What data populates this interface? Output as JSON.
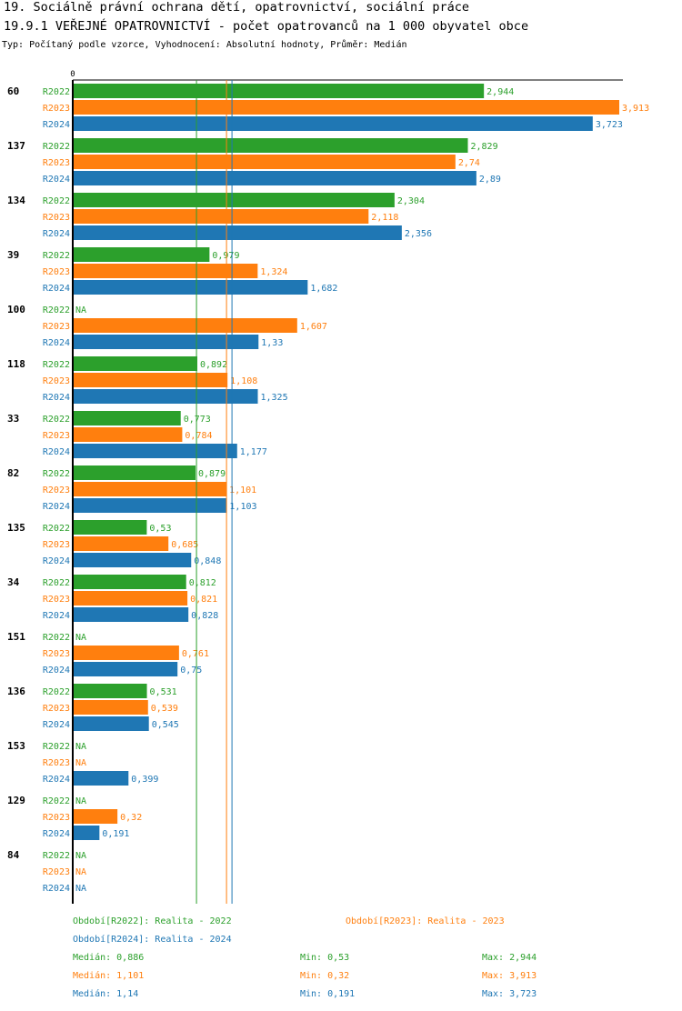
{
  "chart_data": {
    "type": "bar",
    "orientation": "horizontal",
    "title": "19. Sociálně právní ochrana dětí, opatrovnictví, sociální práce",
    "subtitle": "19.9.1 VEŘEJNÉ OPATROVNICTVÍ - počet opatrovanců na 1 000 obyvatel obce",
    "note": "Typ: Počítaný podle vzorce, Vyhodnocení: Absolutní hodnoty, Průměr: Medián",
    "axis_zero_label": "0",
    "xlim": [
      0,
      3.913
    ],
    "categories": [
      "60",
      "137",
      "134",
      "39",
      "100",
      "118",
      "33",
      "82",
      "135",
      "34",
      "151",
      "136",
      "153",
      "129",
      "84"
    ],
    "series": [
      {
        "name": "R2022",
        "color": "#2ca02c",
        "values": [
          2.944,
          2.829,
          2.304,
          0.979,
          null,
          0.892,
          0.773,
          0.879,
          0.53,
          0.812,
          null,
          0.531,
          null,
          null,
          null
        ],
        "labels": [
          "2,944",
          "2,829",
          "2,304",
          "0,979",
          "NA",
          "0,892",
          "0,773",
          "0,879",
          "0,53",
          "0,812",
          "NA",
          "0,531",
          "NA",
          "NA",
          "NA"
        ]
      },
      {
        "name": "R2023",
        "color": "#ff7f0e",
        "values": [
          3.913,
          2.74,
          2.118,
          1.324,
          1.607,
          1.108,
          0.784,
          1.101,
          0.685,
          0.821,
          0.761,
          0.539,
          null,
          0.32,
          null
        ],
        "labels": [
          "3,913",
          "2,74",
          "2,118",
          "1,324",
          "1,607",
          "1,108",
          "0,784",
          "1,101",
          "0,685",
          "0,821",
          "0,761",
          "0,539",
          "NA",
          "0,32",
          "NA"
        ]
      },
      {
        "name": "R2024",
        "color": "#1f77b4",
        "values": [
          3.723,
          2.89,
          2.356,
          1.682,
          1.33,
          1.325,
          1.177,
          1.103,
          0.848,
          0.828,
          0.75,
          0.545,
          0.399,
          0.191,
          null
        ],
        "labels": [
          "3,723",
          "2,89",
          "2,356",
          "1,682",
          "1,33",
          "1,325",
          "1,177",
          "1,103",
          "0,848",
          "0,828",
          "0,75",
          "0,545",
          "0,399",
          "0,191",
          "NA"
        ]
      }
    ],
    "median_lines": [
      {
        "series": "R2022",
        "value": 0.886
      },
      {
        "series": "R2023",
        "value": 1.101
      },
      {
        "series": "R2024",
        "value": 1.14
      }
    ],
    "legend": [
      {
        "text": "Období[R2022]: Realita - 2022",
        "color": "#2ca02c"
      },
      {
        "text": "Období[R2023]: Realita - 2023",
        "color": "#ff7f0e"
      },
      {
        "text": "Období[R2024]: Realita - 2024",
        "color": "#1f77b4"
      }
    ],
    "stats": [
      {
        "median": "Medián: 0,886",
        "min": "Min: 0,53",
        "max": "Max: 2,944",
        "color": "#2ca02c"
      },
      {
        "median": "Medián: 1,101",
        "min": "Min: 0,32",
        "max": "Max: 3,913",
        "color": "#ff7f0e"
      },
      {
        "median": "Medián: 1,14",
        "min": "Min: 0,191",
        "max": "Max: 3,723",
        "color": "#1f77b4"
      }
    ]
  }
}
